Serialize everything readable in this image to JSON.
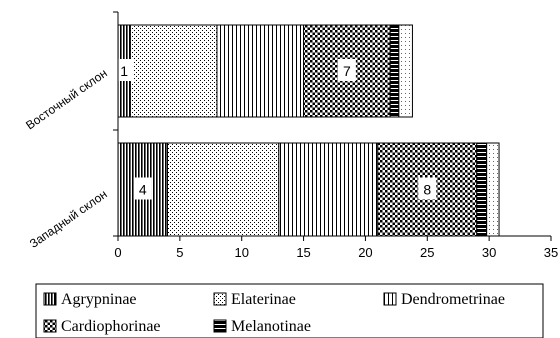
{
  "chart_data": {
    "type": "bar",
    "orientation": "horizontal",
    "stacked": true,
    "categories": [
      "Восточный склон",
      "Западный склон"
    ],
    "series": [
      {
        "name": "Agrypninae",
        "values": [
          1,
          4
        ],
        "pattern": "dense-vertical"
      },
      {
        "name": "Elaterinae",
        "values": [
          7,
          9
        ],
        "pattern": "dots"
      },
      {
        "name": "Dendrometrinae",
        "values": [
          7,
          8
        ],
        "pattern": "vertical-lines"
      },
      {
        "name": "Cardiophorinae",
        "values": [
          7,
          8
        ],
        "pattern": "checker"
      },
      {
        "name": "Melanotinae",
        "values": [
          0.7,
          0.8
        ],
        "pattern": "solid-black"
      },
      {
        "name": "",
        "values": [
          1.1,
          1.0
        ],
        "pattern": "light-dots"
      }
    ],
    "data_labels": [
      {
        "category": "Восточный склон",
        "series": "Agrypninae",
        "text": "1"
      },
      {
        "category": "Восточный склон",
        "series": "Cardiophorinae",
        "text": "7"
      },
      {
        "category": "Западный склон",
        "series": "Agrypninae",
        "text": "4"
      },
      {
        "category": "Западный склон",
        "series": "Cardiophorinae",
        "text": "8"
      }
    ],
    "xlim": [
      0,
      35
    ],
    "xticks": [
      0,
      5,
      10,
      15,
      20,
      25,
      30,
      35
    ],
    "xlabel": "",
    "ylabel": "",
    "grid": false,
    "legend_position": "bottom",
    "colors": {
      "ink": "#000000",
      "background": "#ffffff"
    }
  }
}
